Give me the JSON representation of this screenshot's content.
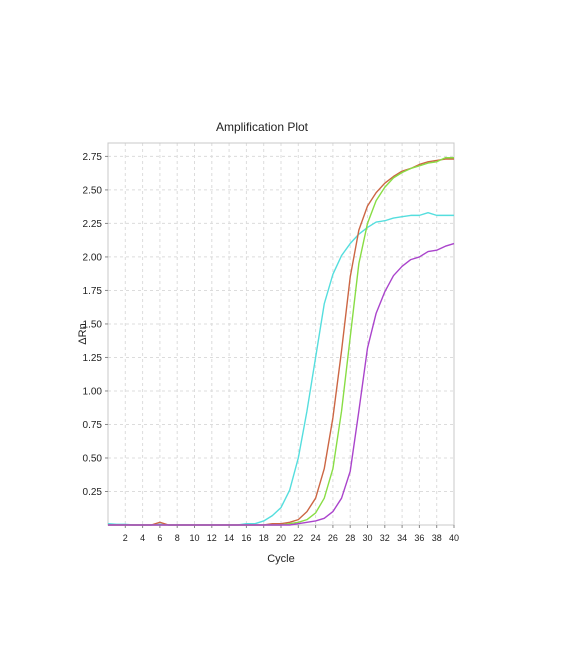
{
  "chart_data": {
    "type": "line",
    "title": "Amplification Plot",
    "xlabel": "Cycle",
    "ylabel": "ΔRn",
    "xlim": [
      0,
      40
    ],
    "ylim": [
      0,
      2.85
    ],
    "grid": true,
    "legend": "none",
    "x_ticks": [
      "2",
      "4",
      "6",
      "8",
      "10",
      "12",
      "14",
      "16",
      "18",
      "20",
      "22",
      "24",
      "26",
      "28",
      "30",
      "32",
      "34",
      "36",
      "38",
      "40"
    ],
    "y_ticks": [
      "0.25",
      "0.50",
      "0.75",
      "1.00",
      "1.25",
      "1.50",
      "1.75",
      "2.00",
      "2.25",
      "2.50",
      "2.75"
    ],
    "x": [
      0,
      1,
      2,
      3,
      4,
      5,
      6,
      7,
      8,
      9,
      10,
      11,
      12,
      13,
      14,
      15,
      16,
      17,
      18,
      19,
      20,
      21,
      22,
      23,
      24,
      25,
      26,
      27,
      28,
      29,
      30,
      31,
      32,
      33,
      34,
      35,
      36,
      37,
      38,
      39,
      40
    ],
    "series": [
      {
        "color": "#55dede",
        "values": [
          0.01,
          0.005,
          0.005,
          0.0,
          0.0,
          0.0,
          0.005,
          0.0,
          0.0,
          0.0,
          0.0,
          0.0,
          0.0,
          0.0,
          0.0,
          0.0,
          0.01,
          0.01,
          0.03,
          0.07,
          0.13,
          0.26,
          0.5,
          0.85,
          1.25,
          1.65,
          1.87,
          2.01,
          2.1,
          2.17,
          2.22,
          2.26,
          2.27,
          2.29,
          2.3,
          2.31,
          2.31,
          2.33,
          2.31,
          2.31,
          2.31
        ]
      },
      {
        "color": "#cc6644",
        "values": [
          0.0,
          0.0,
          0.0,
          0.0,
          0.0,
          0.0,
          0.02,
          0.0,
          0.0,
          0.0,
          0.0,
          0.0,
          0.0,
          0.0,
          0.0,
          0.0,
          0.0,
          0.0,
          0.0,
          0.01,
          0.01,
          0.02,
          0.04,
          0.1,
          0.2,
          0.42,
          0.8,
          1.3,
          1.85,
          2.2,
          2.38,
          2.48,
          2.55,
          2.6,
          2.64,
          2.66,
          2.69,
          2.71,
          2.72,
          2.73,
          2.73
        ]
      },
      {
        "color": "#88dd44",
        "values": [
          0.0,
          0.0,
          0.0,
          0.0,
          0.0,
          0.0,
          0.0,
          0.0,
          0.0,
          0.0,
          0.0,
          0.0,
          0.0,
          0.0,
          0.0,
          0.0,
          0.0,
          0.0,
          0.0,
          0.0,
          0.0,
          0.01,
          0.02,
          0.04,
          0.09,
          0.2,
          0.42,
          0.85,
          1.4,
          1.95,
          2.25,
          2.42,
          2.52,
          2.59,
          2.63,
          2.66,
          2.68,
          2.7,
          2.71,
          2.74,
          2.74
        ]
      },
      {
        "color": "#aa44cc",
        "values": [
          0.0,
          0.0,
          0.0,
          0.0,
          0.0,
          0.0,
          0.0,
          0.0,
          0.0,
          0.0,
          0.0,
          0.0,
          0.0,
          0.0,
          0.0,
          0.0,
          0.0,
          0.0,
          0.0,
          0.0,
          0.0,
          0.0,
          0.01,
          0.02,
          0.03,
          0.05,
          0.1,
          0.2,
          0.4,
          0.85,
          1.32,
          1.58,
          1.74,
          1.86,
          1.93,
          1.98,
          2.0,
          2.04,
          2.05,
          2.08,
          2.1
        ]
      }
    ]
  }
}
